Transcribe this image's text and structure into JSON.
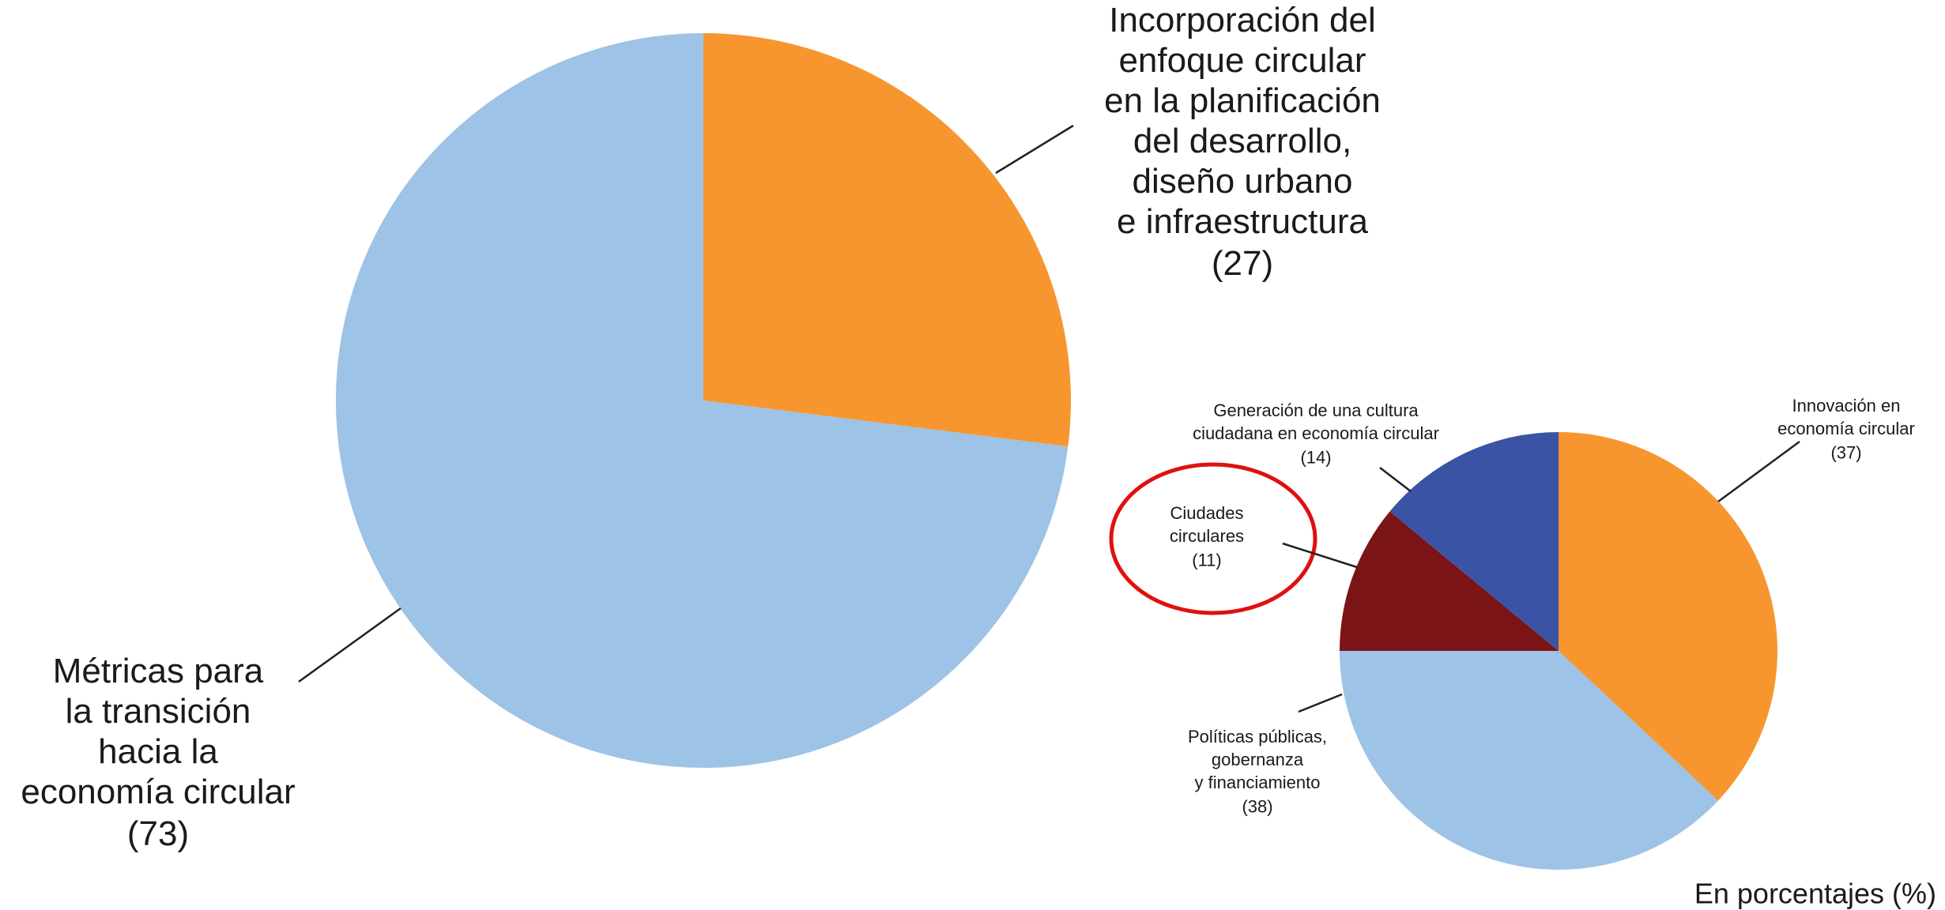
{
  "note": "En porcentajes (%)",
  "chart_data": [
    {
      "type": "pie",
      "categories": [
        "Incorporación del\nenfoque circular\nen la planificación\ndel desarrollo,\ndiseño urbano\ne infraestructura",
        "Métricas para\nla transición\nhacia la\neconomía circular"
      ],
      "values": [
        27,
        73
      ],
      "value_labels": [
        "(27)",
        "(73)"
      ],
      "colors": [
        "#f7962f",
        "#9dc3e6"
      ]
    },
    {
      "type": "pie",
      "categories": [
        "Innovación en\neconomía circular",
        "Políticas públicas,\ngobernanza\ny financiamiento",
        "Ciudades\ncirculares",
        "Generación de una cultura\nciudadana en economía circular"
      ],
      "values": [
        37,
        38,
        11,
        14
      ],
      "value_labels": [
        "(37)",
        "(38)",
        "(11)",
        "(14)"
      ],
      "colors": [
        "#f7962f",
        "#9dc3e6",
        "#7a1416",
        "#3a53a4"
      ]
    }
  ]
}
